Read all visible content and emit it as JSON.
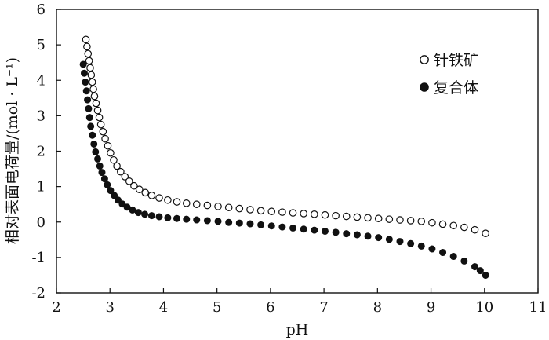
{
  "chart_data": {
    "type": "scatter",
    "title": "",
    "xlabel": "pH",
    "ylabel": "相对表面电荷量/(mol · L⁻¹)",
    "xlim": [
      2,
      11
    ],
    "ylim": [
      -2,
      6
    ],
    "xticks": [
      2,
      3,
      4,
      5,
      6,
      7,
      8,
      9,
      10,
      11
    ],
    "yticks": [
      -2,
      -1,
      0,
      1,
      2,
      3,
      4,
      5,
      6
    ],
    "grid": false,
    "legend_position": "top-right",
    "series": [
      {
        "name": "针铁矿",
        "marker": "open-circle",
        "color": "#111111",
        "x": [
          2.55,
          2.57,
          2.59,
          2.61,
          2.63,
          2.65,
          2.67,
          2.69,
          2.71,
          2.74,
          2.77,
          2.8,
          2.83,
          2.87,
          2.91,
          2.96,
          3.01,
          3.07,
          3.13,
          3.2,
          3.28,
          3.36,
          3.45,
          3.55,
          3.66,
          3.78,
          3.92,
          4.08,
          4.25,
          4.43,
          4.62,
          4.82,
          5.02,
          5.22,
          5.42,
          5.62,
          5.82,
          6.02,
          6.22,
          6.42,
          6.62,
          6.82,
          7.02,
          7.22,
          7.42,
          7.62,
          7.82,
          8.02,
          8.22,
          8.42,
          8.62,
          8.82,
          9.02,
          9.22,
          9.42,
          9.62,
          9.82,
          10.02
        ],
        "y": [
          5.15,
          4.95,
          4.75,
          4.55,
          4.35,
          4.15,
          3.95,
          3.75,
          3.55,
          3.35,
          3.15,
          2.95,
          2.75,
          2.55,
          2.35,
          2.15,
          1.95,
          1.75,
          1.58,
          1.42,
          1.28,
          1.15,
          1.02,
          0.92,
          0.83,
          0.75,
          0.68,
          0.62,
          0.57,
          0.53,
          0.5,
          0.47,
          0.44,
          0.41,
          0.38,
          0.35,
          0.32,
          0.3,
          0.28,
          0.26,
          0.24,
          0.22,
          0.2,
          0.18,
          0.16,
          0.14,
          0.12,
          0.1,
          0.08,
          0.06,
          0.04,
          0.02,
          -0.02,
          -0.06,
          -0.1,
          -0.15,
          -0.22,
          -0.32
        ]
      },
      {
        "name": "复合体",
        "marker": "filled-circle",
        "color": "#111111",
        "x": [
          2.5,
          2.52,
          2.54,
          2.56,
          2.58,
          2.6,
          2.62,
          2.64,
          2.67,
          2.7,
          2.73,
          2.77,
          2.81,
          2.85,
          2.9,
          2.95,
          3.01,
          3.08,
          3.15,
          3.23,
          3.32,
          3.42,
          3.53,
          3.65,
          3.78,
          3.92,
          4.08,
          4.25,
          4.43,
          4.62,
          4.82,
          5.02,
          5.22,
          5.42,
          5.62,
          5.82,
          6.02,
          6.22,
          6.42,
          6.62,
          6.82,
          7.02,
          7.22,
          7.42,
          7.62,
          7.82,
          8.02,
          8.22,
          8.42,
          8.62,
          8.82,
          9.02,
          9.22,
          9.42,
          9.62,
          9.82,
          9.92,
          10.02
        ],
        "y": [
          4.45,
          4.2,
          3.95,
          3.7,
          3.45,
          3.2,
          2.95,
          2.7,
          2.45,
          2.2,
          1.98,
          1.78,
          1.58,
          1.4,
          1.22,
          1.05,
          0.89,
          0.75,
          0.62,
          0.51,
          0.42,
          0.34,
          0.27,
          0.22,
          0.18,
          0.15,
          0.12,
          0.1,
          0.08,
          0.06,
          0.04,
          0.02,
          -0.01,
          -0.03,
          -0.05,
          -0.08,
          -0.11,
          -0.14,
          -0.17,
          -0.2,
          -0.23,
          -0.26,
          -0.29,
          -0.33,
          -0.36,
          -0.4,
          -0.44,
          -0.49,
          -0.55,
          -0.61,
          -0.68,
          -0.76,
          -0.86,
          -0.97,
          -1.1,
          -1.26,
          -1.37,
          -1.5
        ]
      }
    ]
  }
}
